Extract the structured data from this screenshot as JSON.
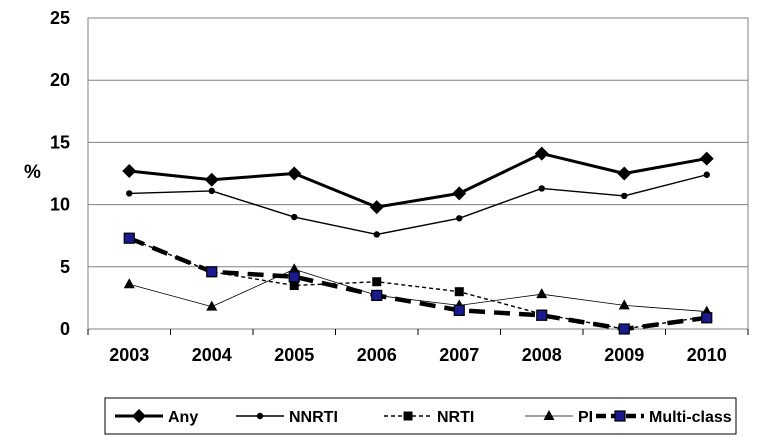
{
  "chart_data": {
    "type": "line",
    "title": "",
    "xlabel": "",
    "ylabel": "%",
    "ylim": [
      0,
      25
    ],
    "yticks": [
      0,
      5,
      10,
      15,
      20,
      25
    ],
    "categories": [
      "2003",
      "2004",
      "2005",
      "2006",
      "2007",
      "2008",
      "2009",
      "2010"
    ],
    "grid": true,
    "legend_position": "bottom",
    "series": [
      {
        "name": "Any",
        "values": [
          12.7,
          12.0,
          12.5,
          9.8,
          10.9,
          14.1,
          12.5,
          13.7
        ],
        "color": "#000000",
        "style": "solid-thick",
        "marker": "diamond"
      },
      {
        "name": "NNRTI",
        "values": [
          10.9,
          11.1,
          9.0,
          7.6,
          8.9,
          11.3,
          10.7,
          12.4
        ],
        "color": "#000000",
        "style": "solid",
        "marker": "circle"
      },
      {
        "name": "NRTI",
        "values": [
          7.3,
          4.6,
          3.5,
          3.8,
          3.0,
          1.2,
          0.0,
          1.0
        ],
        "color": "#000000",
        "style": "dashed",
        "marker": "square"
      },
      {
        "name": "PI",
        "values": [
          3.6,
          1.8,
          4.8,
          2.7,
          1.9,
          2.8,
          1.9,
          1.4
        ],
        "color": "#000000",
        "style": "solid-thin",
        "marker": "triangle"
      },
      {
        "name": "Multi-class",
        "values": [
          7.3,
          4.6,
          4.2,
          2.7,
          1.5,
          1.1,
          0.0,
          0.9
        ],
        "color": "#000000",
        "style": "dashed-thick",
        "marker": "square-navy"
      }
    ]
  }
}
